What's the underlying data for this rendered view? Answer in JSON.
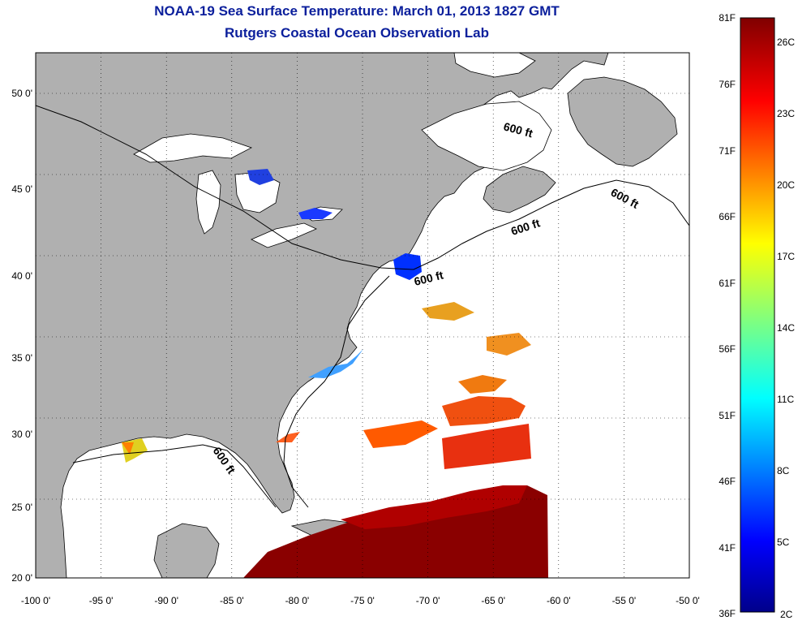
{
  "title": {
    "line1": "NOAA-19 Sea Surface Temperature:  March 01, 2013 1827 GMT",
    "line2": "Rutgers Coastal Ocean Observation Lab"
  },
  "map": {
    "lon_range": [
      -100,
      -50
    ],
    "lat_range": [
      20,
      52.5
    ],
    "x_ticks": [
      "-100 0'",
      "-95 0'",
      "-90 0'",
      "-85 0'",
      "-80 0'",
      "-75 0'",
      "-70 0'",
      "-65 0'",
      "-60 0'",
      "-55 0'",
      "-50 0'"
    ],
    "y_ticks": [
      "50 0'",
      "45 0'",
      "40 0'",
      "35 0'",
      "30 0'",
      "25 0'",
      "20 0'"
    ],
    "grid": "dotted",
    "land_color": "#b0b0b0",
    "ocean_color": "#ffffff",
    "contour_labels": [
      "600 ft",
      "600 ft",
      "600 ft",
      "600 ft",
      "600 ft"
    ]
  },
  "colorbar": {
    "f_labels": [
      "81F",
      "76F",
      "71F",
      "66F",
      "61F",
      "56F",
      "51F",
      "46F",
      "41F",
      "36F"
    ],
    "c_labels": [
      "26C",
      "23C",
      "20C",
      "17C",
      "14C",
      "11C",
      "8C",
      "5C",
      "2C"
    ]
  }
}
